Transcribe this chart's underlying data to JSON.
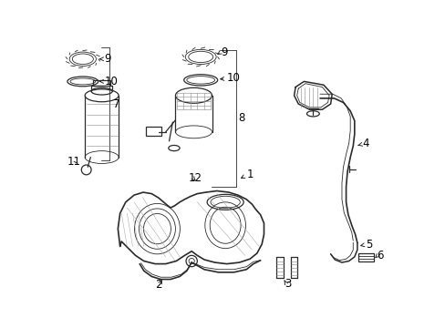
{
  "bg_color": "#ffffff",
  "line_color": "#2a2a2a",
  "label_color": "#000000",
  "font_size": 8.5,
  "figsize": [
    4.89,
    3.6
  ],
  "dpi": 100
}
